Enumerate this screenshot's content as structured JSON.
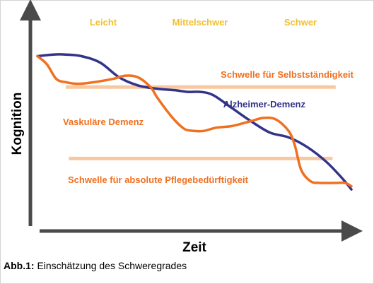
{
  "chart_data": {
    "type": "line",
    "title": "",
    "xlabel": "Zeit",
    "ylabel": "Kognition",
    "stages": [
      "Leicht",
      "Mittelschwer",
      "Schwer"
    ],
    "colors": {
      "axis": "#4a4a4a",
      "stage": "#f0c030",
      "alzheimer": "#33338a",
      "vaskulaer": "#f07020",
      "threshold": "#f8c8a0",
      "threshold_label": "#f07020"
    },
    "xlim": [
      0,
      100
    ],
    "ylim": [
      0,
      100
    ],
    "series": [
      {
        "name": "Alzheimer-Demenz",
        "x": [
          0,
          5,
          9,
          14,
          20,
          26,
          32,
          38,
          44,
          48,
          52,
          56,
          62,
          68,
          74,
          80,
          86,
          92,
          97,
          100
        ],
        "values": [
          85,
          86,
          86,
          85,
          81,
          72,
          67,
          65,
          64,
          63,
          63,
          61,
          53,
          45,
          38,
          35,
          29,
          20,
          10,
          3
        ]
      },
      {
        "name": "Vaskuläre Demenz",
        "x": [
          0,
          3,
          6,
          9,
          13,
          18,
          24,
          28,
          32,
          36,
          38,
          41,
          44,
          47,
          50,
          53,
          57,
          62,
          68,
          72,
          76,
          80,
          82,
          84,
          87,
          90,
          95,
          98,
          100
        ],
        "values": [
          85,
          80,
          71,
          69,
          68,
          69,
          71,
          73,
          72,
          66,
          60,
          52,
          45,
          40,
          39,
          39,
          41,
          42,
          45,
          47,
          46,
          39,
          30,
          15,
          8,
          7,
          7,
          7,
          5
        ]
      }
    ],
    "thresholds": [
      {
        "name": "Schwelle für Selbstständigkeit",
        "y": 66
      },
      {
        "name": "Schwelle für absolute Pflegebedürftigkeit",
        "y": 22
      }
    ],
    "caption": {
      "label": "Abb.1:",
      "text": " Einschätzung des Schweregrades"
    }
  }
}
